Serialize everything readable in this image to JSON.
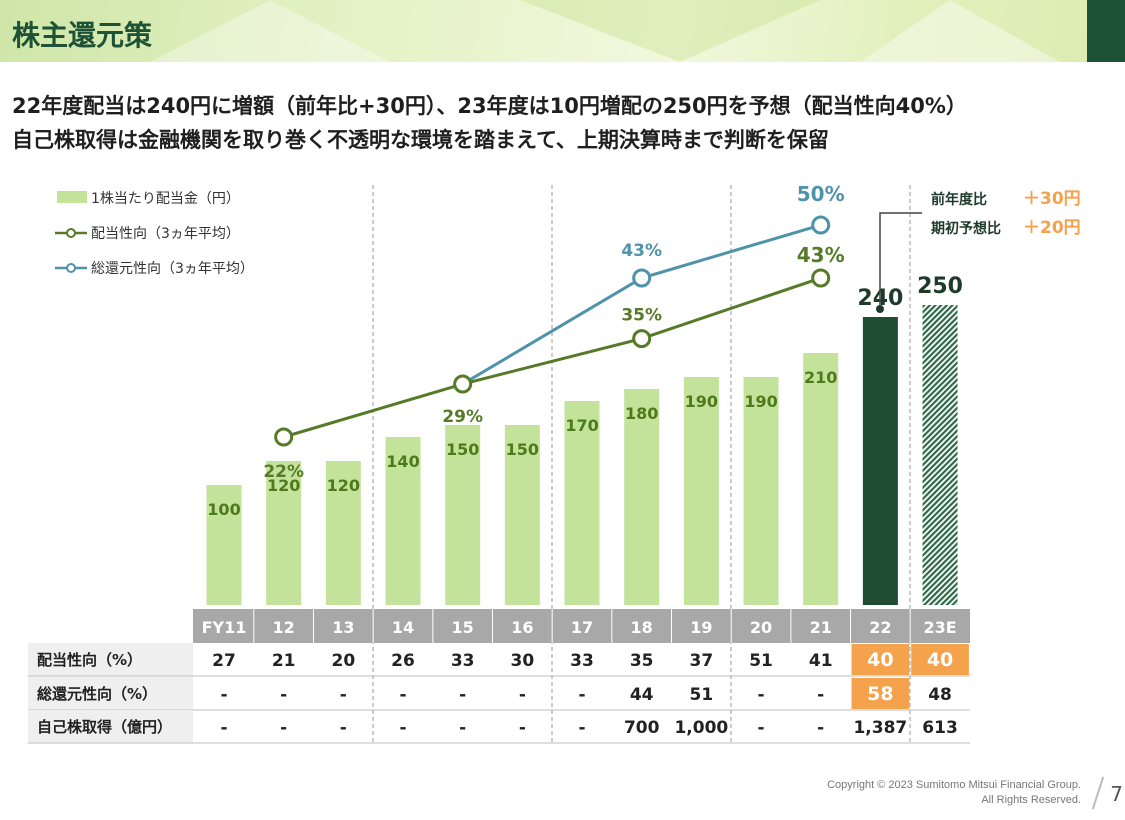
{
  "header": {
    "title": "株主還元策",
    "subtitle_1": "22年度配当は240円に増額（前年比+30円）、23年度は10円増配の250円を予想（配当性向40%）",
    "subtitle_2": "自己株取得は金融機関を取り巻く不透明な環境を踏まえて、上期決算時まで判断を保留"
  },
  "legend": {
    "bar": "1株当たり配当金（円）",
    "payout": "配当性向（3ヵ年平均）",
    "total": "総還元性向（3ヵ年平均）"
  },
  "callout": {
    "line1_label": "前年度比",
    "line1_value": "＋30円",
    "line2_label": "期初予想比",
    "line2_value": "＋20円"
  },
  "chart_data": {
    "type": "bar",
    "categories": [
      "FY11",
      "12",
      "13",
      "14",
      "15",
      "16",
      "17",
      "18",
      "19",
      "20",
      "21",
      "22",
      "23E"
    ],
    "dividend": [
      100,
      120,
      120,
      140,
      150,
      150,
      170,
      180,
      190,
      190,
      210,
      240,
      250
    ],
    "payout_avg_3y": [
      {
        "x": "12",
        "y": 22
      },
      {
        "x": "15",
        "y": 29
      },
      {
        "x": "18",
        "y": 35
      },
      {
        "x": "21",
        "y": 43
      }
    ],
    "total_return_avg_3y": [
      {
        "x": "15",
        "y": 29
      },
      {
        "x": "18",
        "y": 43
      },
      {
        "x": "21",
        "y": 50
      }
    ],
    "line_labels": {
      "p12": "22%",
      "p15": "29%",
      "p18": "35%",
      "p21": "43%",
      "t18": "43%",
      "t21": "50%"
    },
    "colors": {
      "bar": "#c3e39a",
      "bar_label": "#4e7a1c",
      "bar_22": "#1e4d33",
      "bar_23": "#2e6a48",
      "payout_line": "#557a28",
      "total_line": "#4e93aa",
      "highlight": "#f4a24c",
      "axis_band": "#a8a8a8"
    },
    "table": {
      "rows": [
        {
          "label": "配当性向（%）",
          "values": [
            "27",
            "21",
            "20",
            "26",
            "33",
            "30",
            "33",
            "35",
            "37",
            "51",
            "41",
            "40",
            "40"
          ]
        },
        {
          "label": "総還元性向（%）",
          "values": [
            "-",
            "-",
            "-",
            "-",
            "-",
            "-",
            "-",
            "44",
            "51",
            "-",
            "-",
            "58",
            "48"
          ]
        },
        {
          "label": "自己株取得（億円）",
          "values": [
            "-",
            "-",
            "-",
            "-",
            "-",
            "-",
            "-",
            "700",
            "1,000",
            "-",
            "-",
            "1,387",
            "613"
          ]
        }
      ]
    }
  },
  "footer": {
    "copyright": "Copyright © 2023 Sumitomo Mitsui Financial Group.",
    "rights": "All Rights Reserved.",
    "page": "7"
  }
}
